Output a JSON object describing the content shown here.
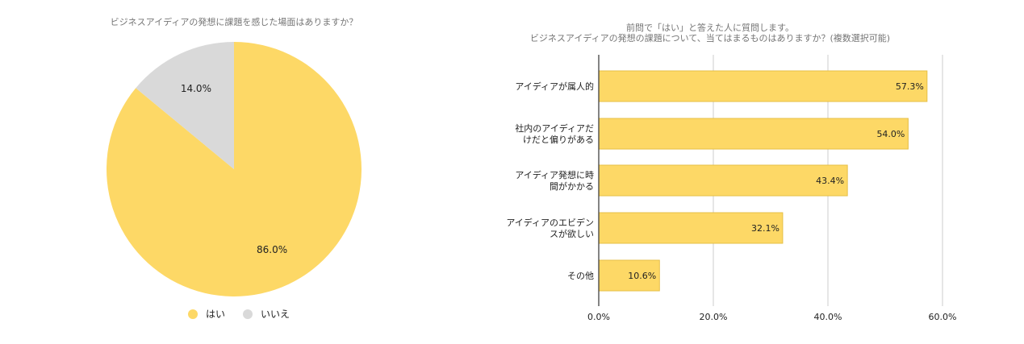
{
  "colors": {
    "yes": "#fdd866",
    "no": "#d9d9d9",
    "bar_fill": "#fdd866",
    "bar_stroke": "#e6bf45",
    "grid": "#cccccc",
    "axis": "#333333",
    "title": "#757575"
  },
  "chart_data": [
    {
      "type": "pie",
      "title": "ビジネスアイディアの発想に課題を感じた場面はありますか？",
      "slices": [
        {
          "label": "はい",
          "value": 86.0,
          "display": "86.0%"
        },
        {
          "label": "いいえ",
          "value": 14.0,
          "display": "14.0%"
        }
      ],
      "legend_position": "bottom"
    },
    {
      "type": "bar",
      "orientation": "horizontal",
      "title": "前問で「はい」と答えた人に質問します。",
      "subtitle": "ビジネスアイディアの発想の課題について、当てはまるものはありますか？(複数選択可能)",
      "categories": [
        [
          "アイディアが属人的"
        ],
        [
          "社内のアイディアだ",
          "けだと偏りがある"
        ],
        [
          "アイディア発想に時",
          "間がかかる"
        ],
        [
          "アイディアのエビデン",
          "スが欲しい"
        ],
        [
          "その他"
        ]
      ],
      "values": [
        57.3,
        54.0,
        43.4,
        32.1,
        10.6
      ],
      "value_labels": [
        "57.3%",
        "54.0%",
        "43.4%",
        "32.1%",
        "10.6%"
      ],
      "xlim": [
        0,
        60
      ],
      "xticks": [
        "0.0%",
        "20.0%",
        "40.0%",
        "60.0%"
      ],
      "grid": true
    }
  ]
}
